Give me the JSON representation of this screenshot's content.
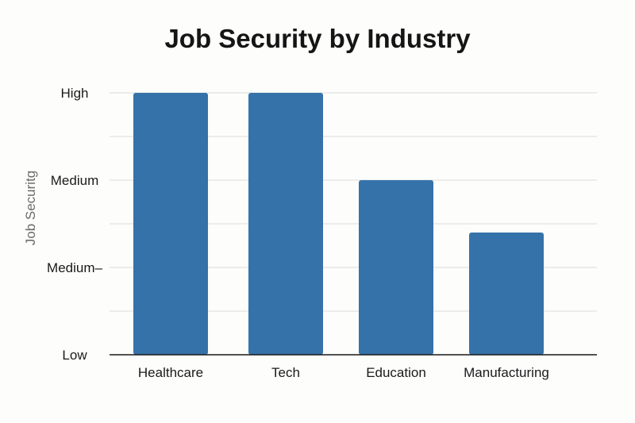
{
  "chart_data": {
    "type": "bar",
    "title": "Job Security by Industry",
    "xlabel": "",
    "ylabel": "Job Securitg",
    "categories": [
      "Healthcare",
      "Tech",
      "Education",
      "Manufacturing"
    ],
    "values": [
      3.0,
      3.0,
      2.0,
      1.4
    ],
    "ylim": [
      0,
      3
    ],
    "yticks": [
      {
        "value": 0,
        "label": "Low"
      },
      {
        "value": 1,
        "label": "Medium–"
      },
      {
        "value": 2,
        "label": "Medium"
      },
      {
        "value": 3,
        "label": "High"
      }
    ],
    "grid": true,
    "bar_color": "#3572a9"
  }
}
